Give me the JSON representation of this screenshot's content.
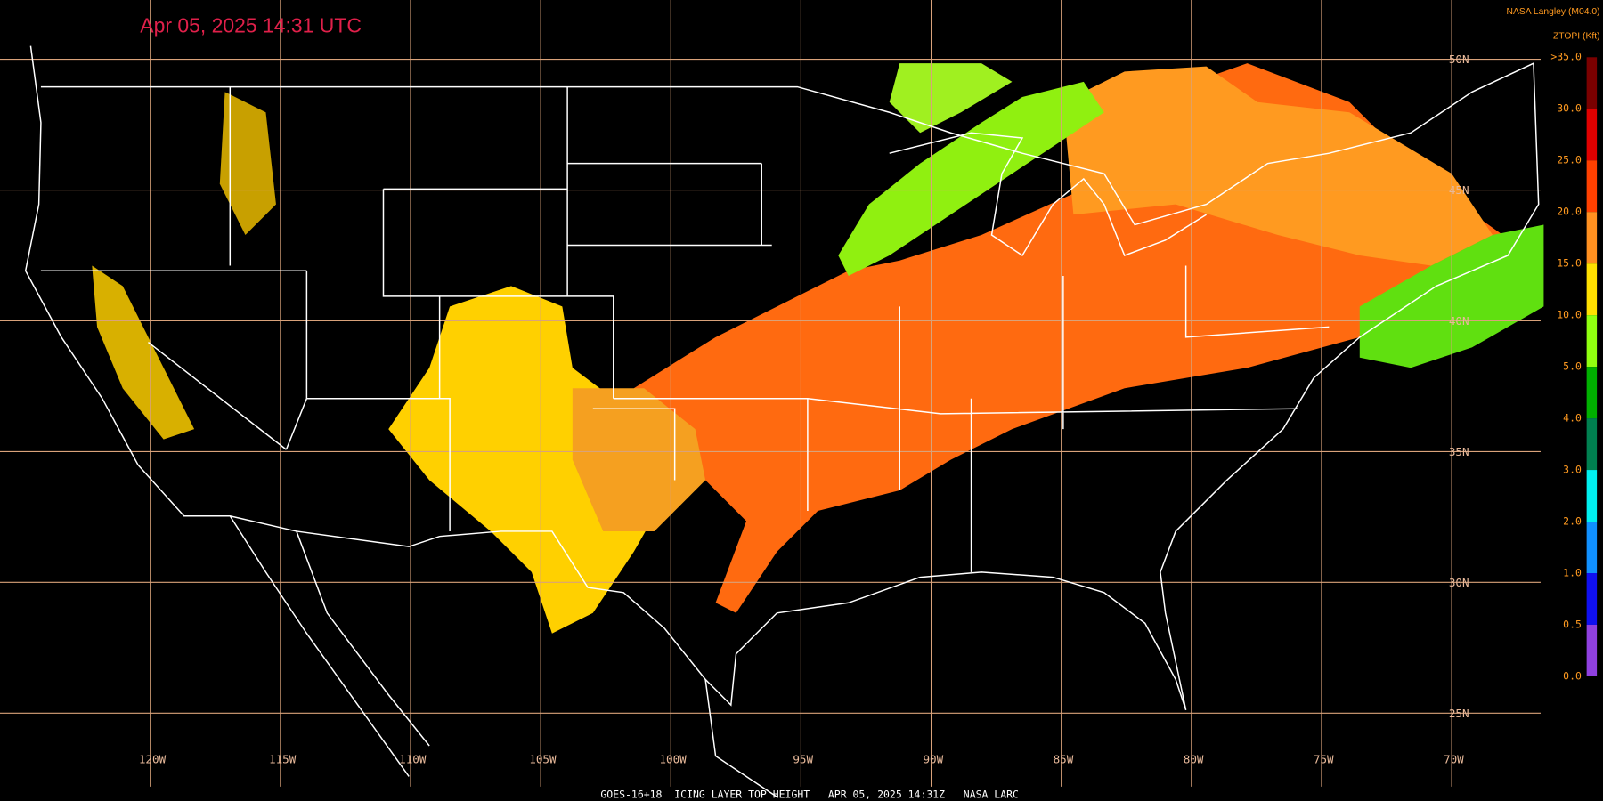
{
  "header": {
    "timestamp": "Apr 05, 2025 14:31 UTC",
    "source": "NASA Langley (M04.0)",
    "product": "ZTOPI (Kft)"
  },
  "legend": {
    "labels": [
      ">35.0",
      "30.0",
      "25.0",
      "20.0",
      "15.0",
      "10.0",
      "5.0",
      "4.0",
      "3.0",
      "2.0",
      "1.0",
      "0.5",
      "0.0"
    ],
    "colors": [
      "#7a0000",
      "#e00000",
      "#ff4000",
      "#ff9020",
      "#ffe000",
      "#90ff10",
      "#00b000",
      "#008050",
      "#00f0f0",
      "#1090ff",
      "#1010f0",
      "#9040e0"
    ]
  },
  "longitude_labels": [
    "120W",
    "115W",
    "110W",
    "105W",
    "100W",
    "95W",
    "90W",
    "85W",
    "80W",
    "75W",
    "70W"
  ],
  "latitude_labels": [
    "50N",
    "45N",
    "40N",
    "35N",
    "30N",
    "25N"
  ],
  "footer": "GOES-16+18  ICING LAYER TOP HEIGHT   APR 05, 2025 14:31Z   NASA LARC"
}
